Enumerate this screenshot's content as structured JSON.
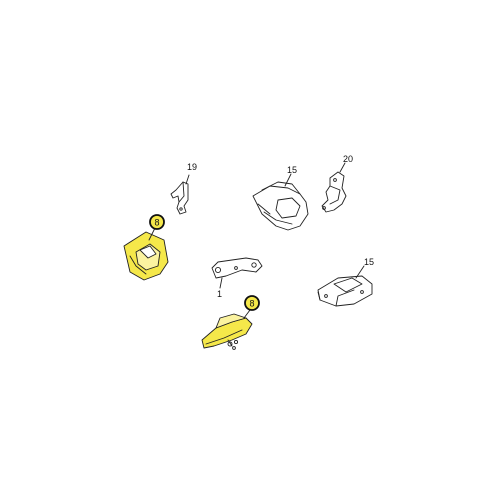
{
  "diagram": {
    "highlight_color": "#F5E84A",
    "line_color": "#222222",
    "background": "#FFFFFF",
    "callouts": [
      {
        "id": "c19",
        "label": "19",
        "highlighted": false
      },
      {
        "id": "c15a",
        "label": "15",
        "highlighted": false
      },
      {
        "id": "c20",
        "label": "20",
        "highlighted": false
      },
      {
        "id": "c8a",
        "label": "8",
        "highlighted": true
      },
      {
        "id": "c1",
        "label": "1",
        "highlighted": false
      },
      {
        "id": "c15b",
        "label": "15",
        "highlighted": false
      },
      {
        "id": "c8b",
        "label": "8",
        "highlighted": true
      }
    ]
  }
}
